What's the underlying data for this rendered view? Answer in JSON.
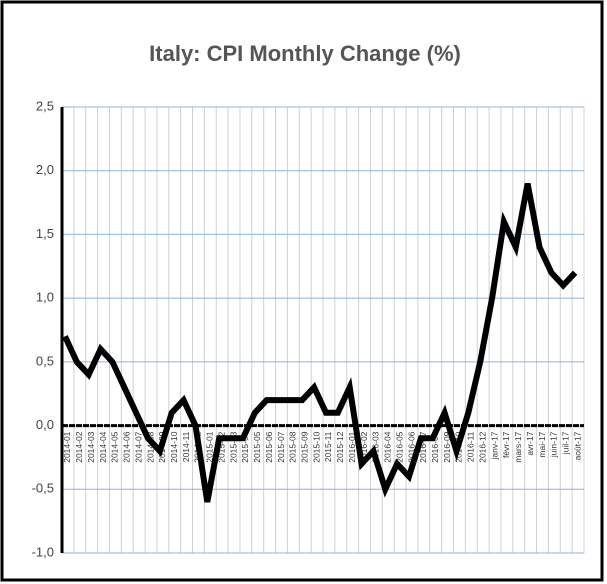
{
  "chart_data": {
    "type": "line",
    "title": "Italy: CPI Monthly Change (%)",
    "categories": [
      "2014-01",
      "2014-02",
      "2014-03",
      "2014-04",
      "2014-05",
      "2014-06",
      "2014-07",
      "2014-08",
      "2014-09",
      "2014-10",
      "2014-11",
      "2014-12",
      "2015-01",
      "2015-02",
      "2015-03",
      "2015-04",
      "2015-05",
      "2015-06",
      "2015-07",
      "2015-08",
      "2015-09",
      "2015-10",
      "2015-11",
      "2015-12",
      "2016-01",
      "2016-02",
      "2016-03",
      "2016-04",
      "2016-05",
      "2016-06",
      "2016-07",
      "2016-08",
      "2016-09",
      "2016-10",
      "2016-11",
      "2016-12",
      "janv-17",
      "févr-17",
      "mars-17",
      "avr-17",
      "mai-17",
      "juin-17",
      "juil-17",
      "août-17"
    ],
    "values": [
      0.7,
      0.5,
      0.4,
      0.6,
      0.5,
      0.3,
      0.1,
      -0.1,
      -0.2,
      0.1,
      0.2,
      0.0,
      -0.6,
      -0.1,
      -0.1,
      -0.1,
      0.1,
      0.2,
      0.2,
      0.2,
      0.2,
      0.3,
      0.1,
      0.1,
      0.3,
      -0.3,
      -0.2,
      -0.5,
      -0.3,
      -0.4,
      -0.1,
      -0.1,
      0.1,
      -0.2,
      0.1,
      0.5,
      1.0,
      1.6,
      1.4,
      1.9,
      1.4,
      1.2,
      1.1,
      1.2
    ],
    "color": "#000000",
    "ylim": [
      -1.0,
      2.5
    ],
    "yticks": [
      {
        "value": -1.0,
        "label": "-1,0"
      },
      {
        "value": -0.5,
        "label": "-0,5"
      },
      {
        "value": 0.0,
        "label": "0,0"
      },
      {
        "value": 0.5,
        "label": "0,5"
      },
      {
        "value": 1.0,
        "label": "1,0"
      },
      {
        "value": 1.5,
        "label": "1,5"
      },
      {
        "value": 2.0,
        "label": "2,0"
      },
      {
        "value": 2.5,
        "label": "2,5"
      }
    ],
    "grid": true
  }
}
